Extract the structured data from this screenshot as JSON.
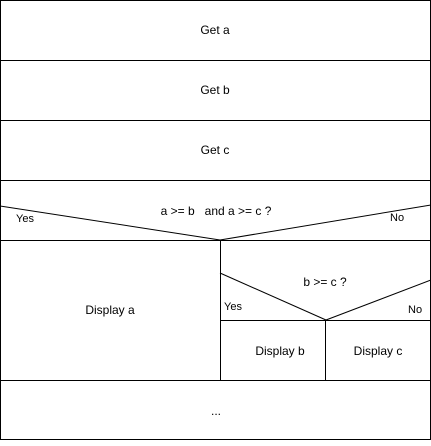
{
  "diagram": {
    "steps": [
      "Get a",
      "Get b",
      "Get c"
    ],
    "condition1": {
      "text": "a >= b   and a >= c ?",
      "yes": "Yes",
      "no": "No",
      "yes_action": "Display a"
    },
    "condition2": {
      "text": "b >= c ?",
      "yes": "Yes",
      "no": "No",
      "yes_action": "Display b",
      "no_action": "Display c"
    },
    "footer": "..."
  },
  "colors": {
    "stroke": "#000000",
    "background": "#ffffff"
  }
}
